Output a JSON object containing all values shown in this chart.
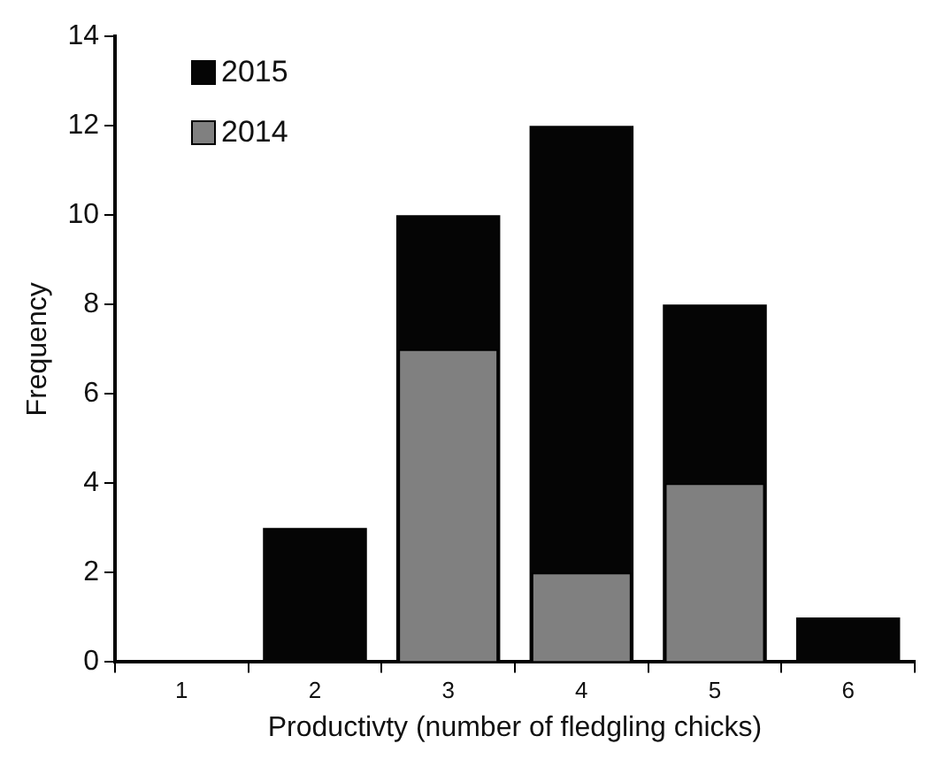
{
  "chart_data": {
    "type": "bar",
    "xlabel": "Productivty (number of fledgling chicks)",
    "ylabel": "Frequency",
    "categories": [
      "1",
      "2",
      "3",
      "4",
      "5",
      "6"
    ],
    "series": [
      {
        "name": "2015",
        "color": "#050505",
        "values": [
          0,
          3,
          10,
          12,
          8,
          1
        ]
      },
      {
        "name": "2014",
        "color": "#808080",
        "values": [
          0,
          0,
          7,
          2,
          4,
          0
        ]
      }
    ],
    "ylim": [
      0,
      14
    ],
    "yticks": [
      0,
      2,
      4,
      6,
      8,
      10,
      12,
      14
    ],
    "grid": false,
    "legend": "top left"
  }
}
